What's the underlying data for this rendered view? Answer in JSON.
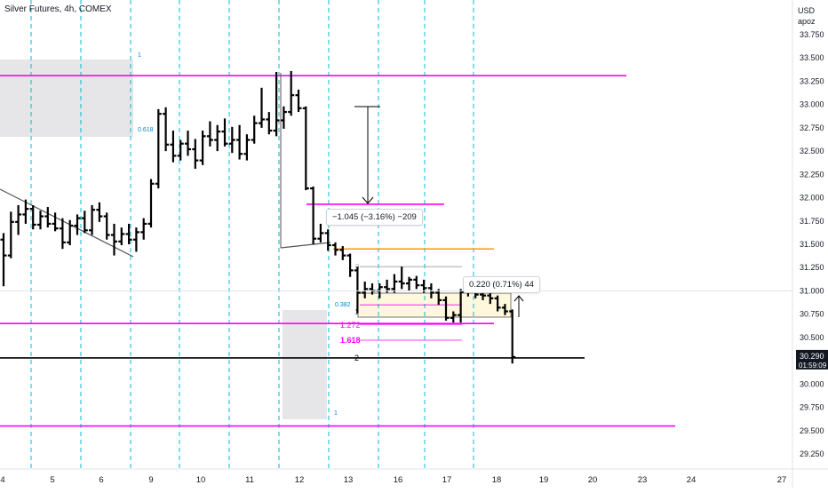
{
  "header": {
    "title": "Silver Futures, 4h, COMEX"
  },
  "price_scale": {
    "unit": "USD",
    "label": "apoz"
  },
  "last_price": {
    "value": "30.290",
    "countdown": "01:59:09"
  },
  "measure_down": {
    "label": "−1.045 (−3.16%) −209"
  },
  "measure_up": {
    "label": "0.220 (0.71%) 44"
  },
  "fib_labels": {
    "upper_one": "1",
    "upper_0618": "0.618",
    "lower_zero": "0",
    "lower_0382": "0.382",
    "lower_one": "1",
    "ext_1272": "1.272",
    "ext_1618": "1.618",
    "ext_2": "2",
    "box_one": "1"
  },
  "colors": {
    "magenta": "#ff00ff",
    "orange": "#ff9800",
    "cyan_dashed": "#00bcd4",
    "bar": "#000000",
    "price_tag": "#131722",
    "zone_gray": "#e6e6e9",
    "zone_yellow": "#fff8dc"
  },
  "chart_data": {
    "type": "ohlc",
    "title": "Silver Futures, 4h, COMEX",
    "xlabel": "",
    "ylabel": "",
    "ylim": [
      29.12,
      33.95
    ],
    "y_ticks": [
      "33.750",
      "33.500",
      "33.250",
      "33.000",
      "32.750",
      "32.500",
      "32.250",
      "32.000",
      "31.750",
      "31.500",
      "31.250",
      "31.000",
      "30.750",
      "30.500",
      "30.250",
      "30.000",
      "29.750",
      "29.500",
      "29.250"
    ],
    "x_ticks": [
      "4",
      "5",
      "6",
      "9",
      "10",
      "11",
      "12",
      "13",
      "16",
      "17",
      "18",
      "19",
      "20",
      "23",
      "24",
      "27"
    ],
    "last_price": 30.29,
    "horizontal_levels": [
      {
        "price": 33.31,
        "color": "magenta",
        "label": ""
      },
      {
        "price": 31.93,
        "color": "magenta",
        "label": ""
      },
      {
        "price": 31.45,
        "color": "orange",
        "label": ""
      },
      {
        "price": 30.65,
        "color": "magenta",
        "label": ""
      },
      {
        "price": 30.28,
        "color": "black",
        "label": "2"
      },
      {
        "price": 29.55,
        "color": "magenta",
        "label": ""
      }
    ],
    "bars": [
      [
        31.55,
        31.62,
        31.05,
        31.38
      ],
      [
        31.38,
        31.85,
        31.35,
        31.74
      ],
      [
        31.74,
        31.92,
        31.6,
        31.82
      ],
      [
        31.82,
        31.98,
        31.72,
        31.88
      ],
      [
        31.88,
        31.92,
        31.66,
        31.71
      ],
      [
        31.71,
        31.86,
        31.66,
        31.8
      ],
      [
        31.8,
        31.9,
        31.68,
        31.72
      ],
      [
        31.72,
        31.84,
        31.64,
        31.67
      ],
      [
        31.67,
        31.78,
        31.45,
        31.52
      ],
      [
        31.52,
        31.76,
        31.49,
        31.7
      ],
      [
        31.7,
        31.82,
        31.6,
        31.78
      ],
      [
        31.78,
        31.86,
        31.62,
        31.65
      ],
      [
        31.65,
        31.92,
        31.6,
        31.87
      ],
      [
        31.87,
        31.95,
        31.74,
        31.8
      ],
      [
        31.8,
        31.84,
        31.55,
        31.6
      ],
      [
        31.6,
        31.72,
        31.38,
        31.53
      ],
      [
        31.53,
        31.68,
        31.49,
        31.61
      ],
      [
        31.61,
        31.72,
        31.5,
        31.55
      ],
      [
        31.55,
        31.68,
        31.42,
        31.63
      ],
      [
        31.63,
        31.78,
        31.55,
        31.72
      ],
      [
        31.72,
        32.2,
        31.68,
        32.15
      ],
      [
        32.15,
        32.95,
        32.1,
        32.9
      ],
      [
        32.9,
        32.97,
        32.5,
        32.57
      ],
      [
        32.57,
        32.72,
        32.38,
        32.45
      ],
      [
        32.45,
        32.62,
        32.4,
        32.58
      ],
      [
        32.58,
        32.72,
        32.45,
        32.52
      ],
      [
        32.52,
        32.63,
        32.31,
        32.4
      ],
      [
        32.4,
        32.72,
        32.35,
        32.66
      ],
      [
        32.66,
        32.82,
        32.55,
        32.62
      ],
      [
        32.62,
        32.78,
        32.5,
        32.71
      ],
      [
        32.71,
        32.85,
        32.55,
        32.58
      ],
      [
        32.58,
        32.76,
        32.48,
        32.62
      ],
      [
        32.62,
        32.78,
        32.41,
        32.47
      ],
      [
        32.47,
        32.68,
        32.4,
        32.62
      ],
      [
        32.62,
        32.88,
        32.58,
        32.8
      ],
      [
        32.8,
        33.18,
        32.75,
        32.84
      ],
      [
        32.84,
        32.92,
        32.68,
        32.72
      ],
      [
        32.72,
        33.35,
        32.66,
        32.83
      ],
      [
        32.83,
        32.98,
        32.74,
        32.92
      ],
      [
        32.92,
        33.36,
        32.88,
        33.1
      ],
      [
        33.1,
        33.16,
        32.92,
        32.96
      ],
      [
        32.96,
        32.98,
        32.08,
        32.1
      ],
      [
        32.1,
        32.12,
        31.5,
        31.56
      ],
      [
        31.56,
        31.72,
        31.52,
        31.62
      ],
      [
        31.62,
        31.66,
        31.43,
        31.49
      ],
      [
        31.49,
        31.52,
        31.38,
        31.44
      ],
      [
        31.44,
        31.48,
        31.33,
        31.38
      ],
      [
        31.38,
        31.4,
        31.15,
        31.22
      ],
      [
        31.22,
        31.26,
        30.76,
        30.98
      ],
      [
        30.98,
        31.1,
        30.92,
        31.02
      ],
      [
        31.02,
        31.08,
        30.96,
        31.0
      ],
      [
        31.0,
        31.08,
        30.92,
        31.04
      ],
      [
        31.04,
        31.12,
        30.98,
        31.02
      ],
      [
        31.02,
        31.18,
        30.98,
        31.1
      ],
      [
        31.1,
        31.26,
        31.02,
        31.08
      ],
      [
        31.08,
        31.15,
        31.0,
        31.12
      ],
      [
        31.12,
        31.16,
        31.02,
        31.06
      ],
      [
        31.06,
        31.12,
        30.98,
        31.03
      ],
      [
        31.03,
        31.08,
        30.92,
        30.98
      ],
      [
        30.98,
        31.02,
        30.85,
        30.9
      ],
      [
        30.9,
        30.94,
        30.68,
        30.71
      ],
      [
        30.71,
        30.78,
        30.66,
        30.74
      ],
      [
        30.74,
        31.02,
        30.66,
        30.99
      ],
      [
        30.99,
        31.03,
        30.94,
        31.0
      ],
      [
        31.0,
        31.04,
        30.92,
        30.96
      ],
      [
        30.96,
        31.02,
        30.9,
        30.95
      ],
      [
        30.95,
        30.98,
        30.86,
        30.92
      ],
      [
        30.92,
        30.95,
        30.78,
        30.82
      ],
      [
        30.82,
        30.86,
        30.74,
        30.78
      ],
      [
        30.78,
        30.8,
        30.22,
        30.29
      ]
    ]
  }
}
